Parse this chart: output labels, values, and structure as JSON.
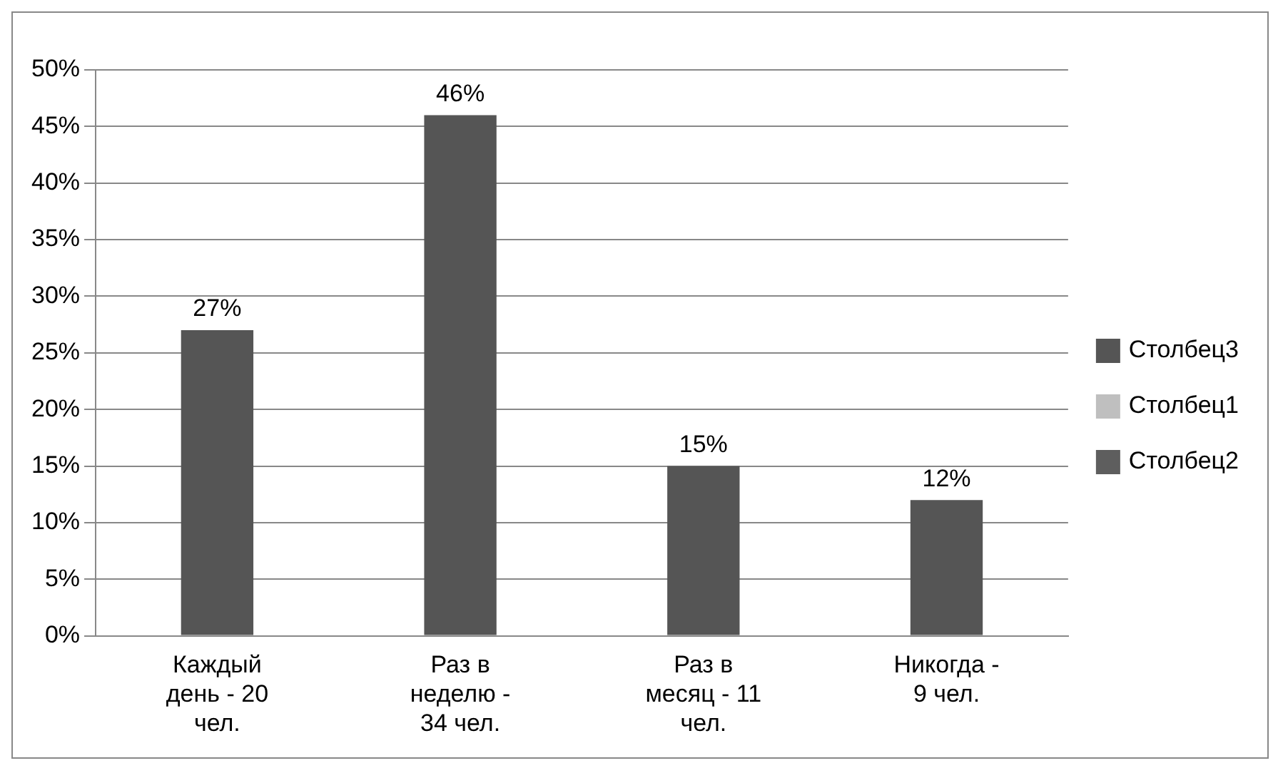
{
  "chart_data": {
    "type": "bar",
    "categories": [
      "Каждый день - 20 чел.",
      "Раз в неделю - 34 чел.",
      "Раз в месяц - 11 чел.",
      "Никогда - 9 чел."
    ],
    "series": [
      {
        "name": "Столбец3",
        "color": "#555555",
        "values": [
          27,
          46,
          15,
          12
        ],
        "value_labels": [
          "27%",
          "46%",
          "15%",
          "12%"
        ]
      },
      {
        "name": "Столбец1",
        "color": "#bfbfbf",
        "values": [
          null,
          null,
          null,
          null
        ]
      },
      {
        "name": "Столбец2",
        "color": "#5e5e5e",
        "values": [
          null,
          null,
          null,
          null
        ]
      }
    ],
    "ylim": [
      0,
      50
    ],
    "yticks": [
      {
        "value": 0,
        "label": "0%"
      },
      {
        "value": 5,
        "label": "5%"
      },
      {
        "value": 10,
        "label": "10%"
      },
      {
        "value": 15,
        "label": "15%"
      },
      {
        "value": 20,
        "label": "20%"
      },
      {
        "value": 25,
        "label": "25%"
      },
      {
        "value": 30,
        "label": "30%"
      },
      {
        "value": 35,
        "label": "35%"
      },
      {
        "value": 40,
        "label": "40%"
      },
      {
        "value": 45,
        "label": "45%"
      },
      {
        "value": 50,
        "label": "50%"
      }
    ],
    "grid": "y",
    "legend": "right"
  }
}
